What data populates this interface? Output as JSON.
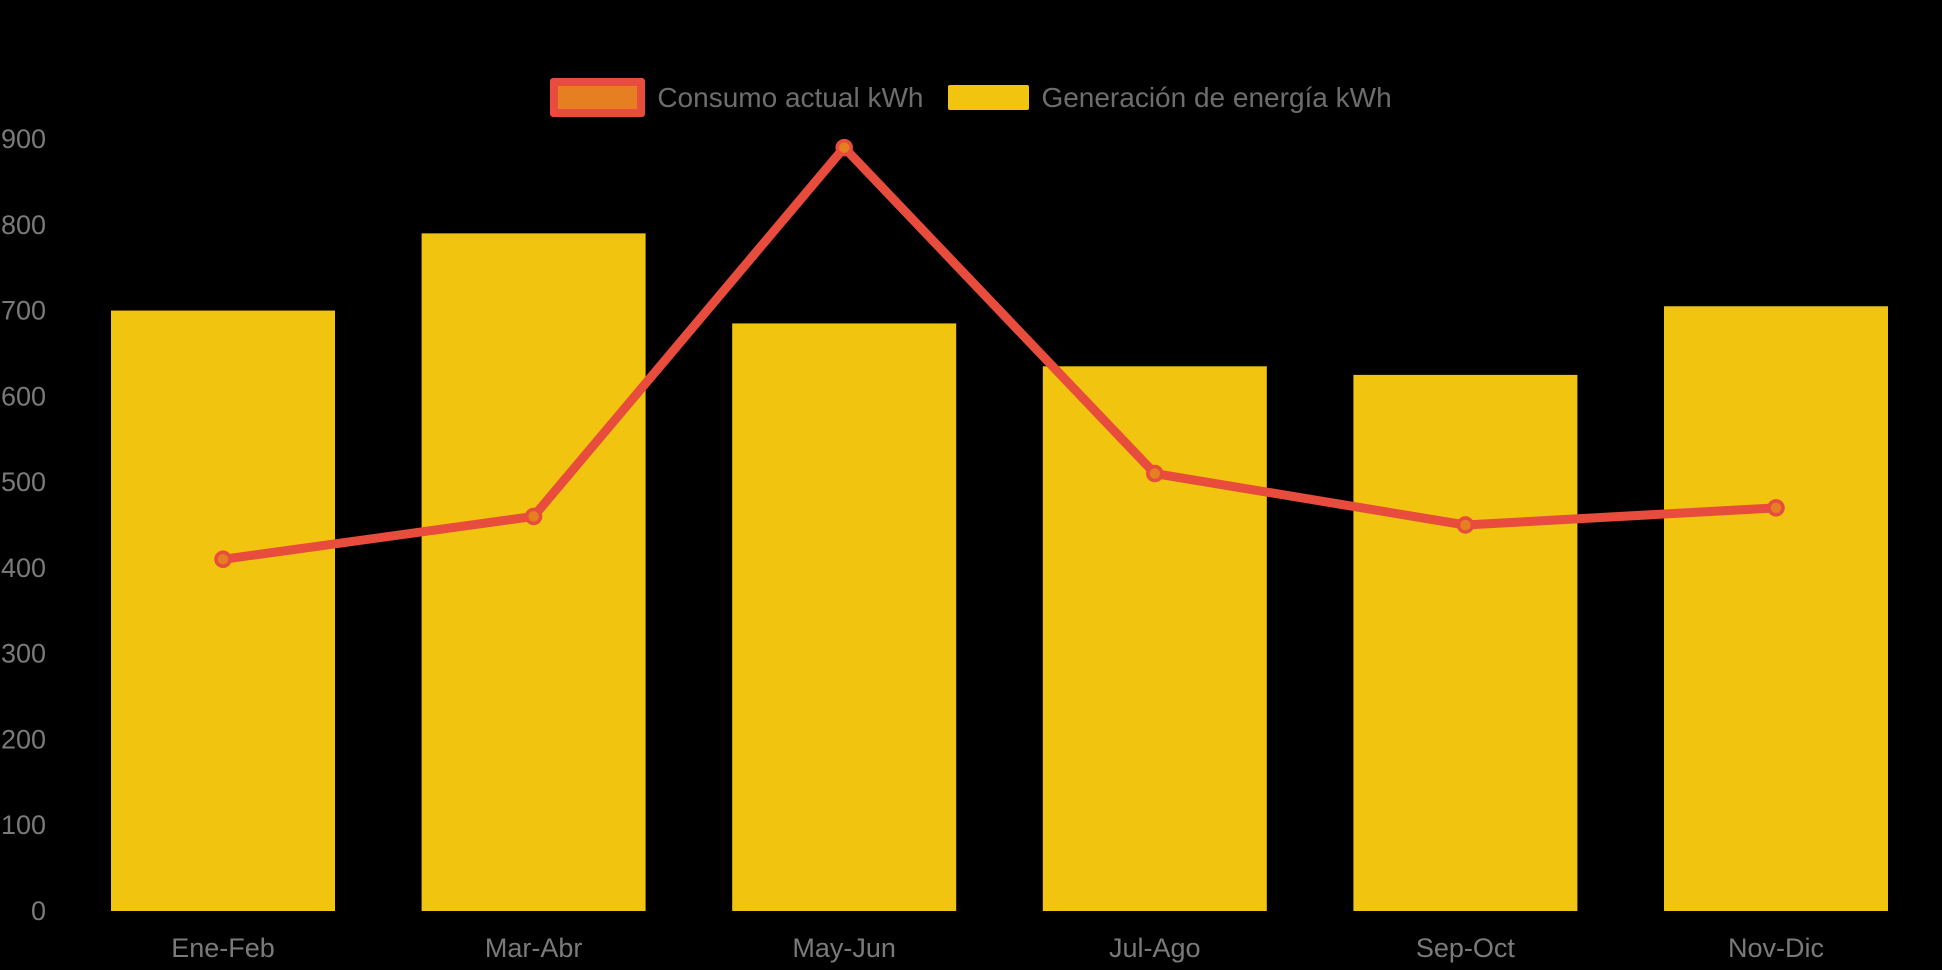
{
  "legend": {
    "items": [
      {
        "label": "Consumo actual kWh"
      },
      {
        "label": "Generación de energía kWh"
      }
    ]
  },
  "chart_data": {
    "type": "bar",
    "title": "",
    "xlabel": "",
    "ylabel": "",
    "categories": [
      "Ene-Feb",
      "Mar-Abr",
      "May-Jun",
      "Jul-Ago",
      "Sep-Oct",
      "Nov-Dic"
    ],
    "series": [
      {
        "name": "Consumo actual kWh",
        "type": "line",
        "values": [
          410,
          460,
          890,
          510,
          450,
          470
        ],
        "line_color": "#e74c3c",
        "marker_fill": "#e67e22",
        "marker_stroke": "#e74c3c"
      },
      {
        "name": "Generación de energía kWh",
        "type": "bar",
        "values": [
          700,
          790,
          685,
          635,
          625,
          705
        ],
        "color": "#f1c40f"
      }
    ],
    "yticks": [
      0,
      100,
      200,
      300,
      400,
      500,
      600,
      700,
      800,
      900
    ],
    "ylim": [
      0,
      900
    ],
    "grid": false,
    "legend_position": "top",
    "background": "#000000",
    "axis_text_color": "#7a7a7a"
  }
}
